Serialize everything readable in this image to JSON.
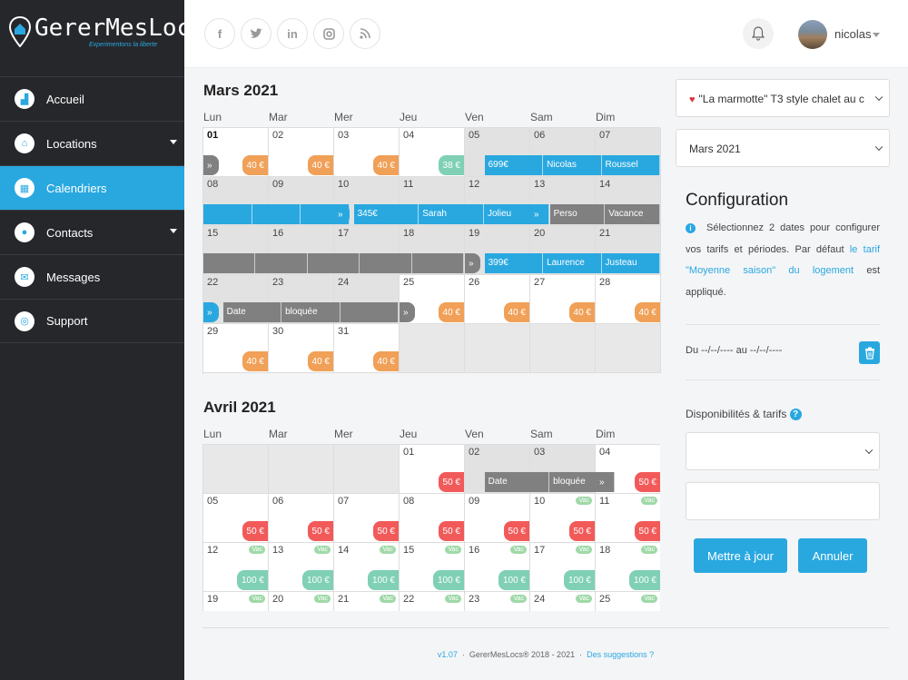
{
  "brand": {
    "name": "GererMesLocs",
    "tagline": "Experimentons la liberte"
  },
  "sidebar": {
    "items": [
      {
        "label": "Accueil",
        "icon": "chart-icon"
      },
      {
        "label": "Locations",
        "icon": "home-icon",
        "has_caret": true
      },
      {
        "label": "Calendriers",
        "icon": "calendar-icon",
        "active": true
      },
      {
        "label": "Contacts",
        "icon": "users-icon",
        "has_caret": true
      },
      {
        "label": "Messages",
        "icon": "envelope-icon"
      },
      {
        "label": "Support",
        "icon": "lifebuoy-icon"
      }
    ]
  },
  "topbar": {
    "social": [
      "facebook-icon",
      "twitter-icon",
      "linkedin-icon",
      "instagram-icon",
      "rss-icon"
    ],
    "user": "nicolas"
  },
  "weekdays": [
    "Lun",
    "Mar",
    "Mer",
    "Jeu",
    "Ven",
    "Sam",
    "Dim"
  ],
  "march": {
    "title": "Mars 2021",
    "days": [
      {
        "n": "01",
        "bold": true,
        "price": "40 €",
        "pc": "orange"
      },
      {
        "n": "02",
        "price": "40 €",
        "pc": "orange"
      },
      {
        "n": "03",
        "price": "40 €",
        "pc": "orange"
      },
      {
        "n": "04",
        "price": "38 €",
        "pc": "teal"
      },
      {
        "n": "05",
        "grey": true
      },
      {
        "n": "06",
        "grey": true
      },
      {
        "n": "07",
        "grey": true
      },
      {
        "n": "08",
        "grey": true
      },
      {
        "n": "09",
        "grey": true
      },
      {
        "n": "10",
        "grey": true
      },
      {
        "n": "11",
        "grey": true
      },
      {
        "n": "12",
        "grey": true
      },
      {
        "n": "13",
        "grey": true
      },
      {
        "n": "14",
        "grey": true
      },
      {
        "n": "15",
        "grey": true
      },
      {
        "n": "16",
        "grey": true
      },
      {
        "n": "17",
        "grey": true
      },
      {
        "n": "18",
        "grey": true
      },
      {
        "n": "19",
        "grey": true
      },
      {
        "n": "20",
        "grey": true
      },
      {
        "n": "21",
        "grey": true
      },
      {
        "n": "22",
        "grey": true
      },
      {
        "n": "23",
        "grey": true
      },
      {
        "n": "24",
        "grey": true
      },
      {
        "n": "25",
        "price": "40 €",
        "pc": "orange"
      },
      {
        "n": "26",
        "price": "40 €",
        "pc": "orange"
      },
      {
        "n": "27",
        "price": "40 €",
        "pc": "orange"
      },
      {
        "n": "28",
        "price": "40 €",
        "pc": "orange"
      },
      {
        "n": "29",
        "price": "40 €",
        "pc": "orange"
      },
      {
        "n": "30",
        "price": "40 €",
        "pc": "orange"
      },
      {
        "n": "31",
        "price": "40 €",
        "pc": "orange"
      }
    ],
    "bookings": [
      {
        "row": 0,
        "start": 0,
        "len": 0.25,
        "color": "grey",
        "text": "»"
      },
      {
        "row": 0,
        "start": 4.3,
        "len": 2.7,
        "color": "blue",
        "segments": [
          "699€",
          "Nicolas",
          "Roussel"
        ]
      },
      {
        "row": 1,
        "start": 0,
        "len": 2.25,
        "color": "blue",
        "segments": [
          "",
          "",
          ""
        ]
      },
      {
        "row": 1,
        "start": 2,
        "len": 0.25,
        "color": "blue",
        "text": "»"
      },
      {
        "row": 1,
        "start": 2.3,
        "len": 3.0,
        "color": "blue",
        "segments": [
          "345€",
          "Sarah",
          "Jolieu"
        ]
      },
      {
        "row": 1,
        "start": 5,
        "len": 0.25,
        "color": "blue",
        "text": "»"
      },
      {
        "row": 1,
        "start": 5.3,
        "len": 1.7,
        "color": "grey",
        "segments": [
          "Perso",
          "Vacance"
        ]
      },
      {
        "row": 2,
        "start": 0,
        "len": 4.0,
        "color": "grey",
        "segments": [
          "",
          "",
          "",
          "",
          ""
        ]
      },
      {
        "row": 2,
        "start": 4,
        "len": 0.25,
        "color": "grey",
        "text": "»"
      },
      {
        "row": 2,
        "start": 4.3,
        "len": 2.7,
        "color": "blue",
        "segments": [
          "399€",
          "Laurence",
          "Justeau"
        ]
      },
      {
        "row": 3,
        "start": 0,
        "len": 0.25,
        "color": "blue",
        "text": "»"
      },
      {
        "row": 3,
        "start": 0.3,
        "len": 2.7,
        "color": "grey",
        "segments": [
          "Date",
          "bloquée",
          ""
        ]
      },
      {
        "row": 3,
        "start": 3,
        "len": 0.25,
        "color": "grey",
        "text": "»"
      }
    ]
  },
  "april": {
    "title": "Avril 2021",
    "offset": 3,
    "days": [
      {
        "n": "01",
        "price": "50 €",
        "pc": "red"
      },
      {
        "n": "02",
        "grey": true
      },
      {
        "n": "03",
        "grey": true
      },
      {
        "n": "04",
        "price": "50 €",
        "pc": "red"
      },
      {
        "n": "05",
        "price": "50 €",
        "pc": "red"
      },
      {
        "n": "06",
        "price": "50 €",
        "pc": "red"
      },
      {
        "n": "07",
        "price": "50 €",
        "pc": "red"
      },
      {
        "n": "08",
        "price": "50 €",
        "pc": "red"
      },
      {
        "n": "09",
        "price": "50 €",
        "pc": "red"
      },
      {
        "n": "10",
        "price": "50 €",
        "pc": "red",
        "vac": "Vac"
      },
      {
        "n": "11",
        "price": "50 €",
        "pc": "red",
        "vac": "Vac"
      },
      {
        "n": "12",
        "price": "100 €",
        "pc": "teal",
        "vac": "Vac"
      },
      {
        "n": "13",
        "price": "100 €",
        "pc": "teal",
        "vac": "Vac"
      },
      {
        "n": "14",
        "price": "100 €",
        "pc": "teal",
        "vac": "Vac"
      },
      {
        "n": "15",
        "price": "100 €",
        "pc": "teal",
        "vac": "Vac"
      },
      {
        "n": "16",
        "price": "100 €",
        "pc": "teal",
        "vac": "Vac"
      },
      {
        "n": "17",
        "price": "100 €",
        "pc": "teal",
        "vac": "Vac"
      },
      {
        "n": "18",
        "price": "100 €",
        "pc": "teal",
        "vac": "Vac"
      },
      {
        "n": "19",
        "vac": "Vac"
      },
      {
        "n": "20",
        "vac": "Vac"
      },
      {
        "n": "21",
        "vac": "Vac"
      },
      {
        "n": "22",
        "vac": "Vac"
      },
      {
        "n": "23",
        "vac": "Vac"
      },
      {
        "n": "24",
        "vac": "Vac"
      },
      {
        "n": "25",
        "vac": "Vac"
      }
    ],
    "bookings": [
      {
        "row": 0,
        "start": 4.3,
        "len": 2.0,
        "color": "grey",
        "segments": [
          "Date",
          "bloquée"
        ]
      },
      {
        "row": 0,
        "start": 6,
        "len": 0.25,
        "color": "grey",
        "text": "»"
      }
    ]
  },
  "config": {
    "property": "\"La marmotte\" T3 style chalet au c",
    "month": "Mars 2021",
    "title": "Configuration",
    "text_a": "Sélectionnez 2 dates pour configurer vos tarifs et périodes. Par défaut ",
    "text_link": "le tarif \"Moyenne saison\" du logement",
    "text_b": " est appliqué.",
    "dates": "Du --/--/---- au --/--/----",
    "dispo_label": "Disponibilités & tarifs",
    "update": "Mettre à jour",
    "cancel": "Annuler"
  },
  "footer": {
    "version": "v1.07",
    "copyright": "GererMesLocs® 2018 - 2021",
    "suggestions": "Des suggestions ?"
  }
}
